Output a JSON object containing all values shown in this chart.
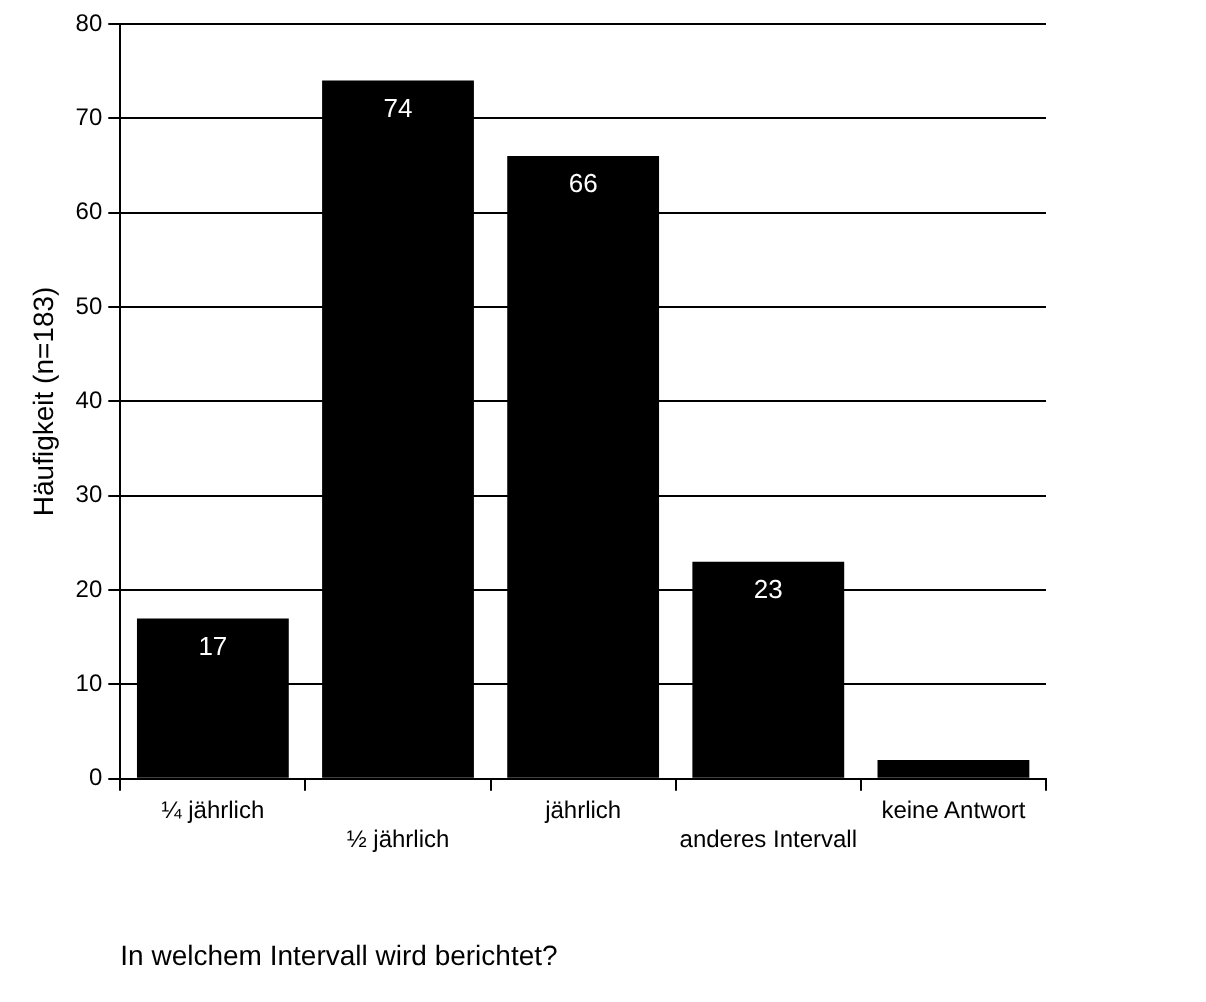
{
  "chart_data": {
    "type": "bar",
    "xlabel": "In welchem Intervall wird berichtet?",
    "ylabel": "Häufigkeit (n=183)",
    "categories": [
      "¼ jährlich",
      "½ jährlich",
      "jährlich",
      "anderes Intervall",
      "keine Antwort"
    ],
    "values": [
      17,
      74,
      66,
      23,
      2
    ],
    "value_labels": [
      "17",
      "74",
      "66",
      "23",
      null
    ],
    "color": "#000000",
    "ylim": [
      0,
      80
    ],
    "yticks": [
      0,
      10,
      20,
      30,
      40,
      50,
      60,
      70,
      80
    ],
    "grid": "y",
    "legend": false
  }
}
